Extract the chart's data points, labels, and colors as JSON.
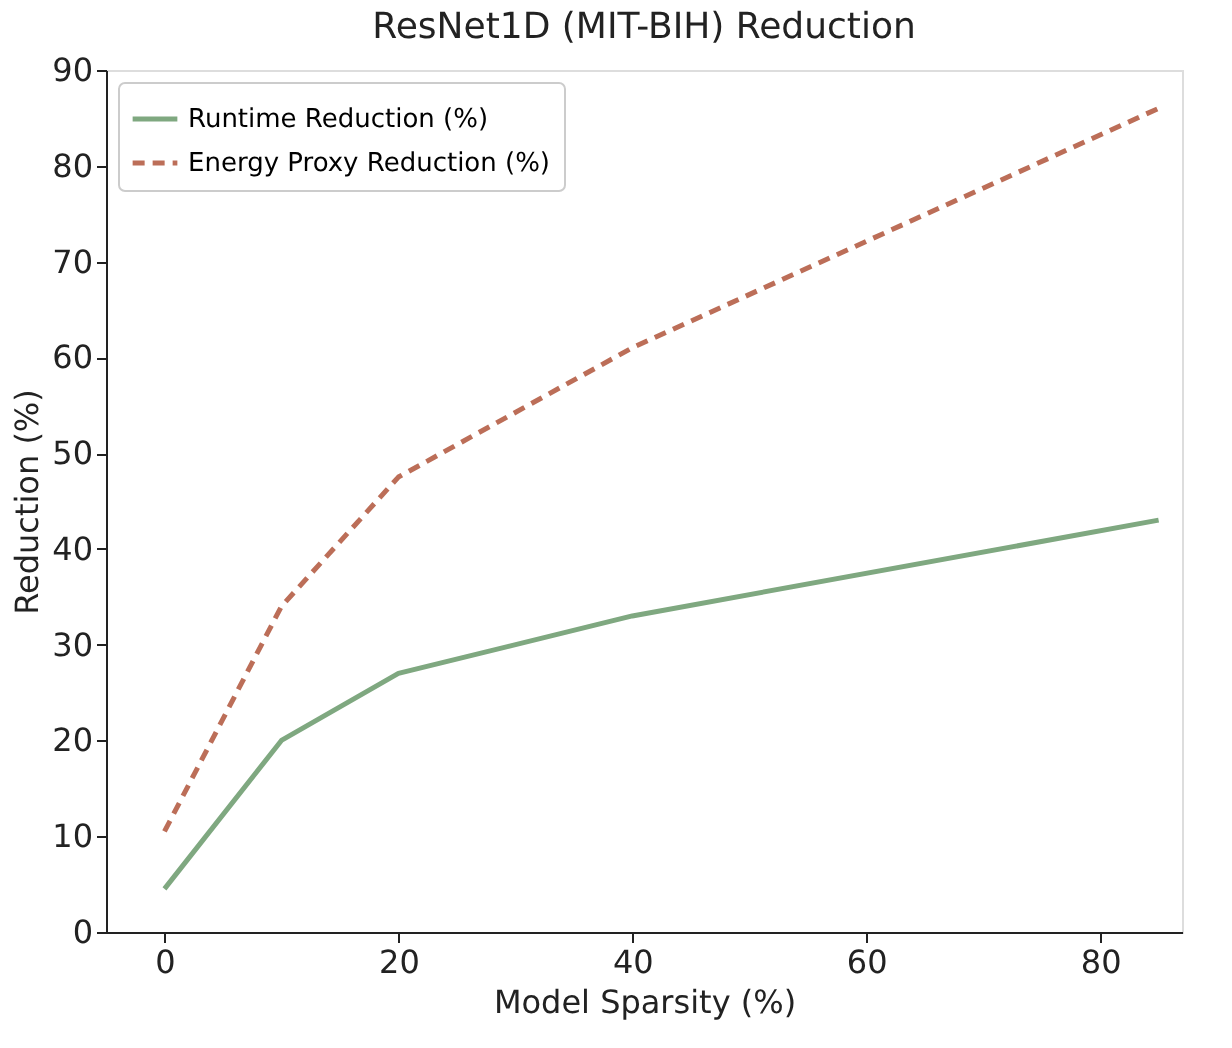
{
  "chart_data": {
    "type": "line",
    "title": "ResNet1D (MIT-BIH) Reduction",
    "xlabel": "Model Sparsity (%)",
    "ylabel": "Reduction (%)",
    "x": [
      0,
      10,
      20,
      40,
      85
    ],
    "series": [
      {
        "name": "Runtime Reduction (%)",
        "color": "#7fa880",
        "line_style": "solid",
        "values": [
          4.5,
          20,
          27,
          33,
          43
        ]
      },
      {
        "name": "Energy Proxy Reduction (%)",
        "color": "#bc6e58",
        "line_style": "dashed",
        "values": [
          10.5,
          34,
          47.5,
          61,
          86
        ]
      }
    ],
    "xlim": [
      -5,
      87
    ],
    "ylim": [
      0,
      90
    ],
    "xticks": [
      0,
      20,
      40,
      60,
      80
    ],
    "yticks": [
      0,
      10,
      20,
      30,
      40,
      50,
      60,
      70,
      80,
      90
    ],
    "grid": false,
    "legend": "top left",
    "marker": "none"
  }
}
